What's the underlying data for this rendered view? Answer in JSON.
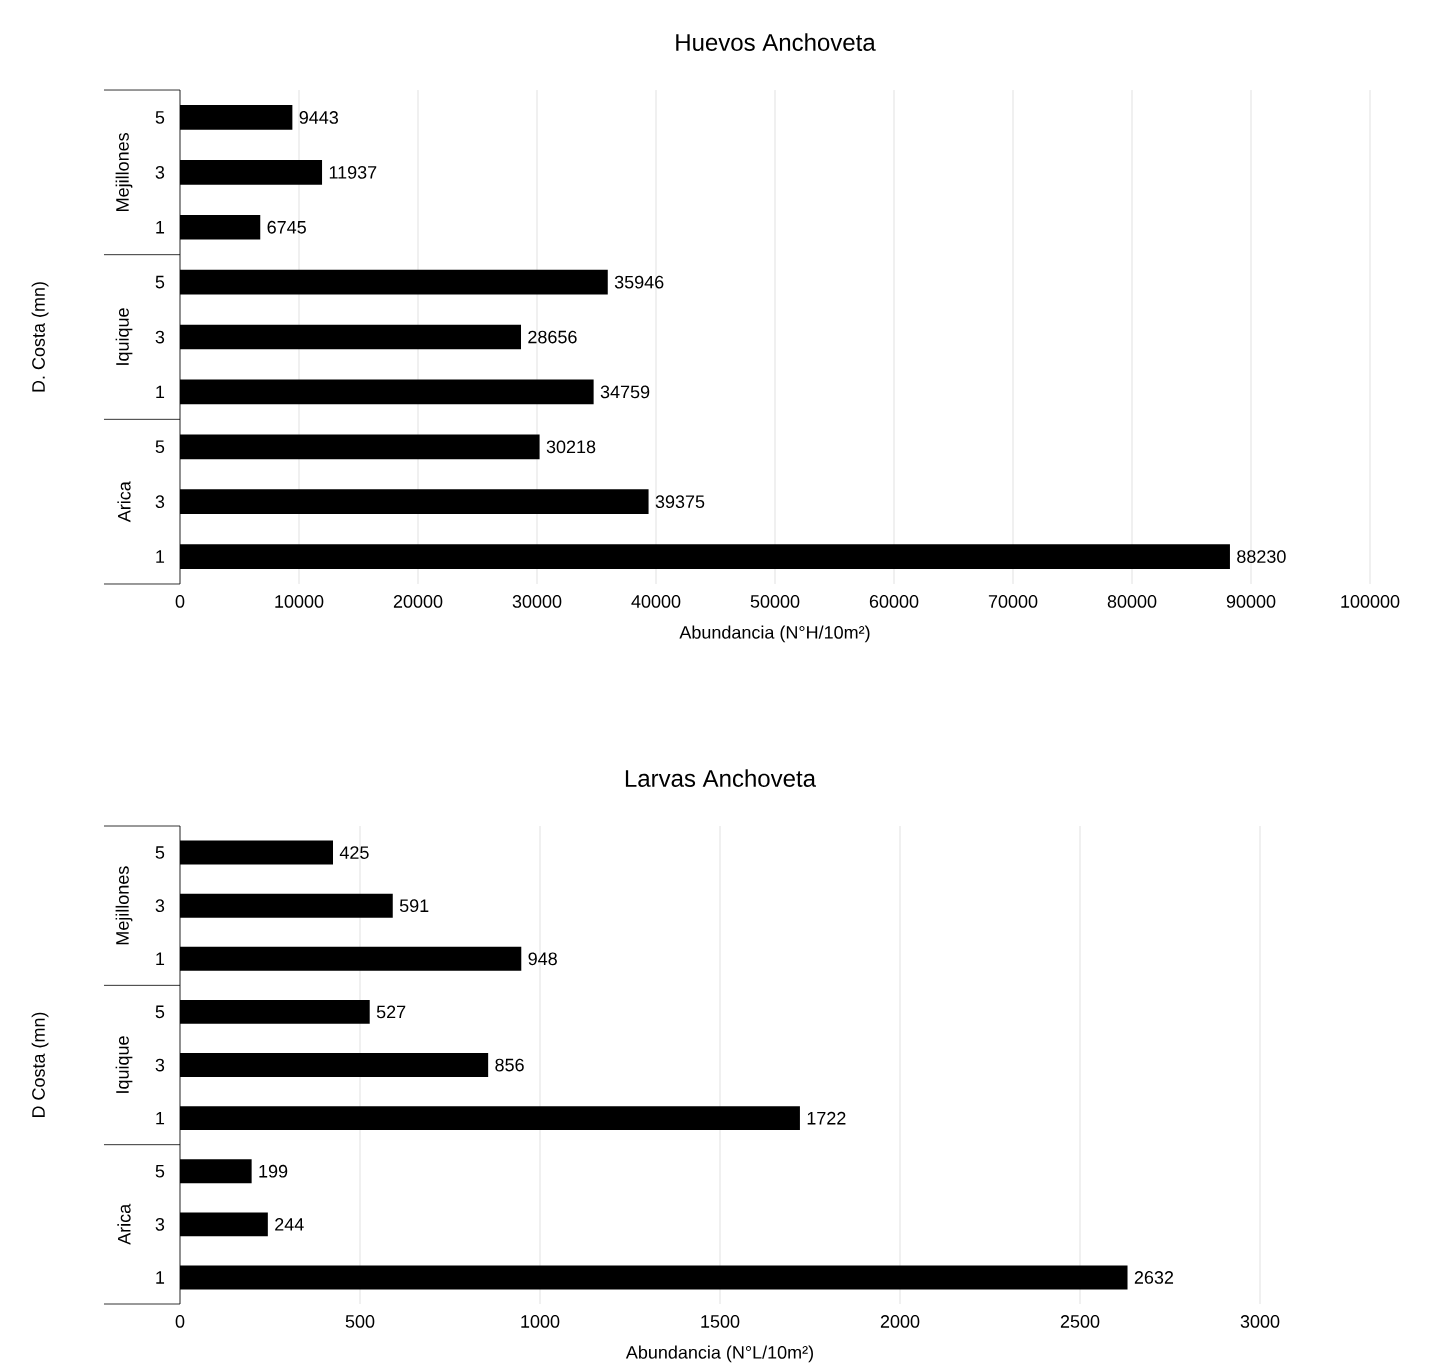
{
  "chart_data": [
    {
      "type": "bar",
      "orientation": "horizontal",
      "title": "Huevos Anchoveta",
      "xlabel": "Abundancia (N°H/10m²)",
      "ylabel": "D. Costa (mn)",
      "categories": [
        "5",
        "3",
        "1",
        "5",
        "3",
        "1",
        "5",
        "3",
        "1"
      ],
      "values": [
        9443,
        11937,
        6745,
        35946,
        28656,
        34759,
        30218,
        39375,
        88230
      ],
      "color": "#000000",
      "xlim": [
        0,
        100000
      ],
      "xticks": [
        0,
        10000,
        20000,
        30000,
        40000,
        50000,
        60000,
        70000,
        80000,
        90000,
        100000
      ],
      "grid": "x",
      "data_labels": true,
      "annotations": [
        "Mejillones",
        "Iquique",
        "Arica"
      ]
    },
    {
      "type": "bar",
      "orientation": "horizontal",
      "title": "Larvas Anchoveta",
      "xlabel": "Abundancia (N°L/10m²)",
      "ylabel": "D Costa (mn)",
      "categories": [
        "5",
        "3",
        "1",
        "5",
        "3",
        "1",
        "5",
        "3",
        "1"
      ],
      "values": [
        425,
        591,
        948,
        527,
        856,
        1722,
        199,
        244,
        2632
      ],
      "color": "#000000",
      "xlim": [
        0,
        3000
      ],
      "xticks": [
        0,
        500,
        1000,
        1500,
        2000,
        2500,
        3000
      ],
      "grid": "x",
      "data_labels": true,
      "annotations": [
        "Mejillones",
        "Iquique",
        "Arica"
      ]
    }
  ]
}
